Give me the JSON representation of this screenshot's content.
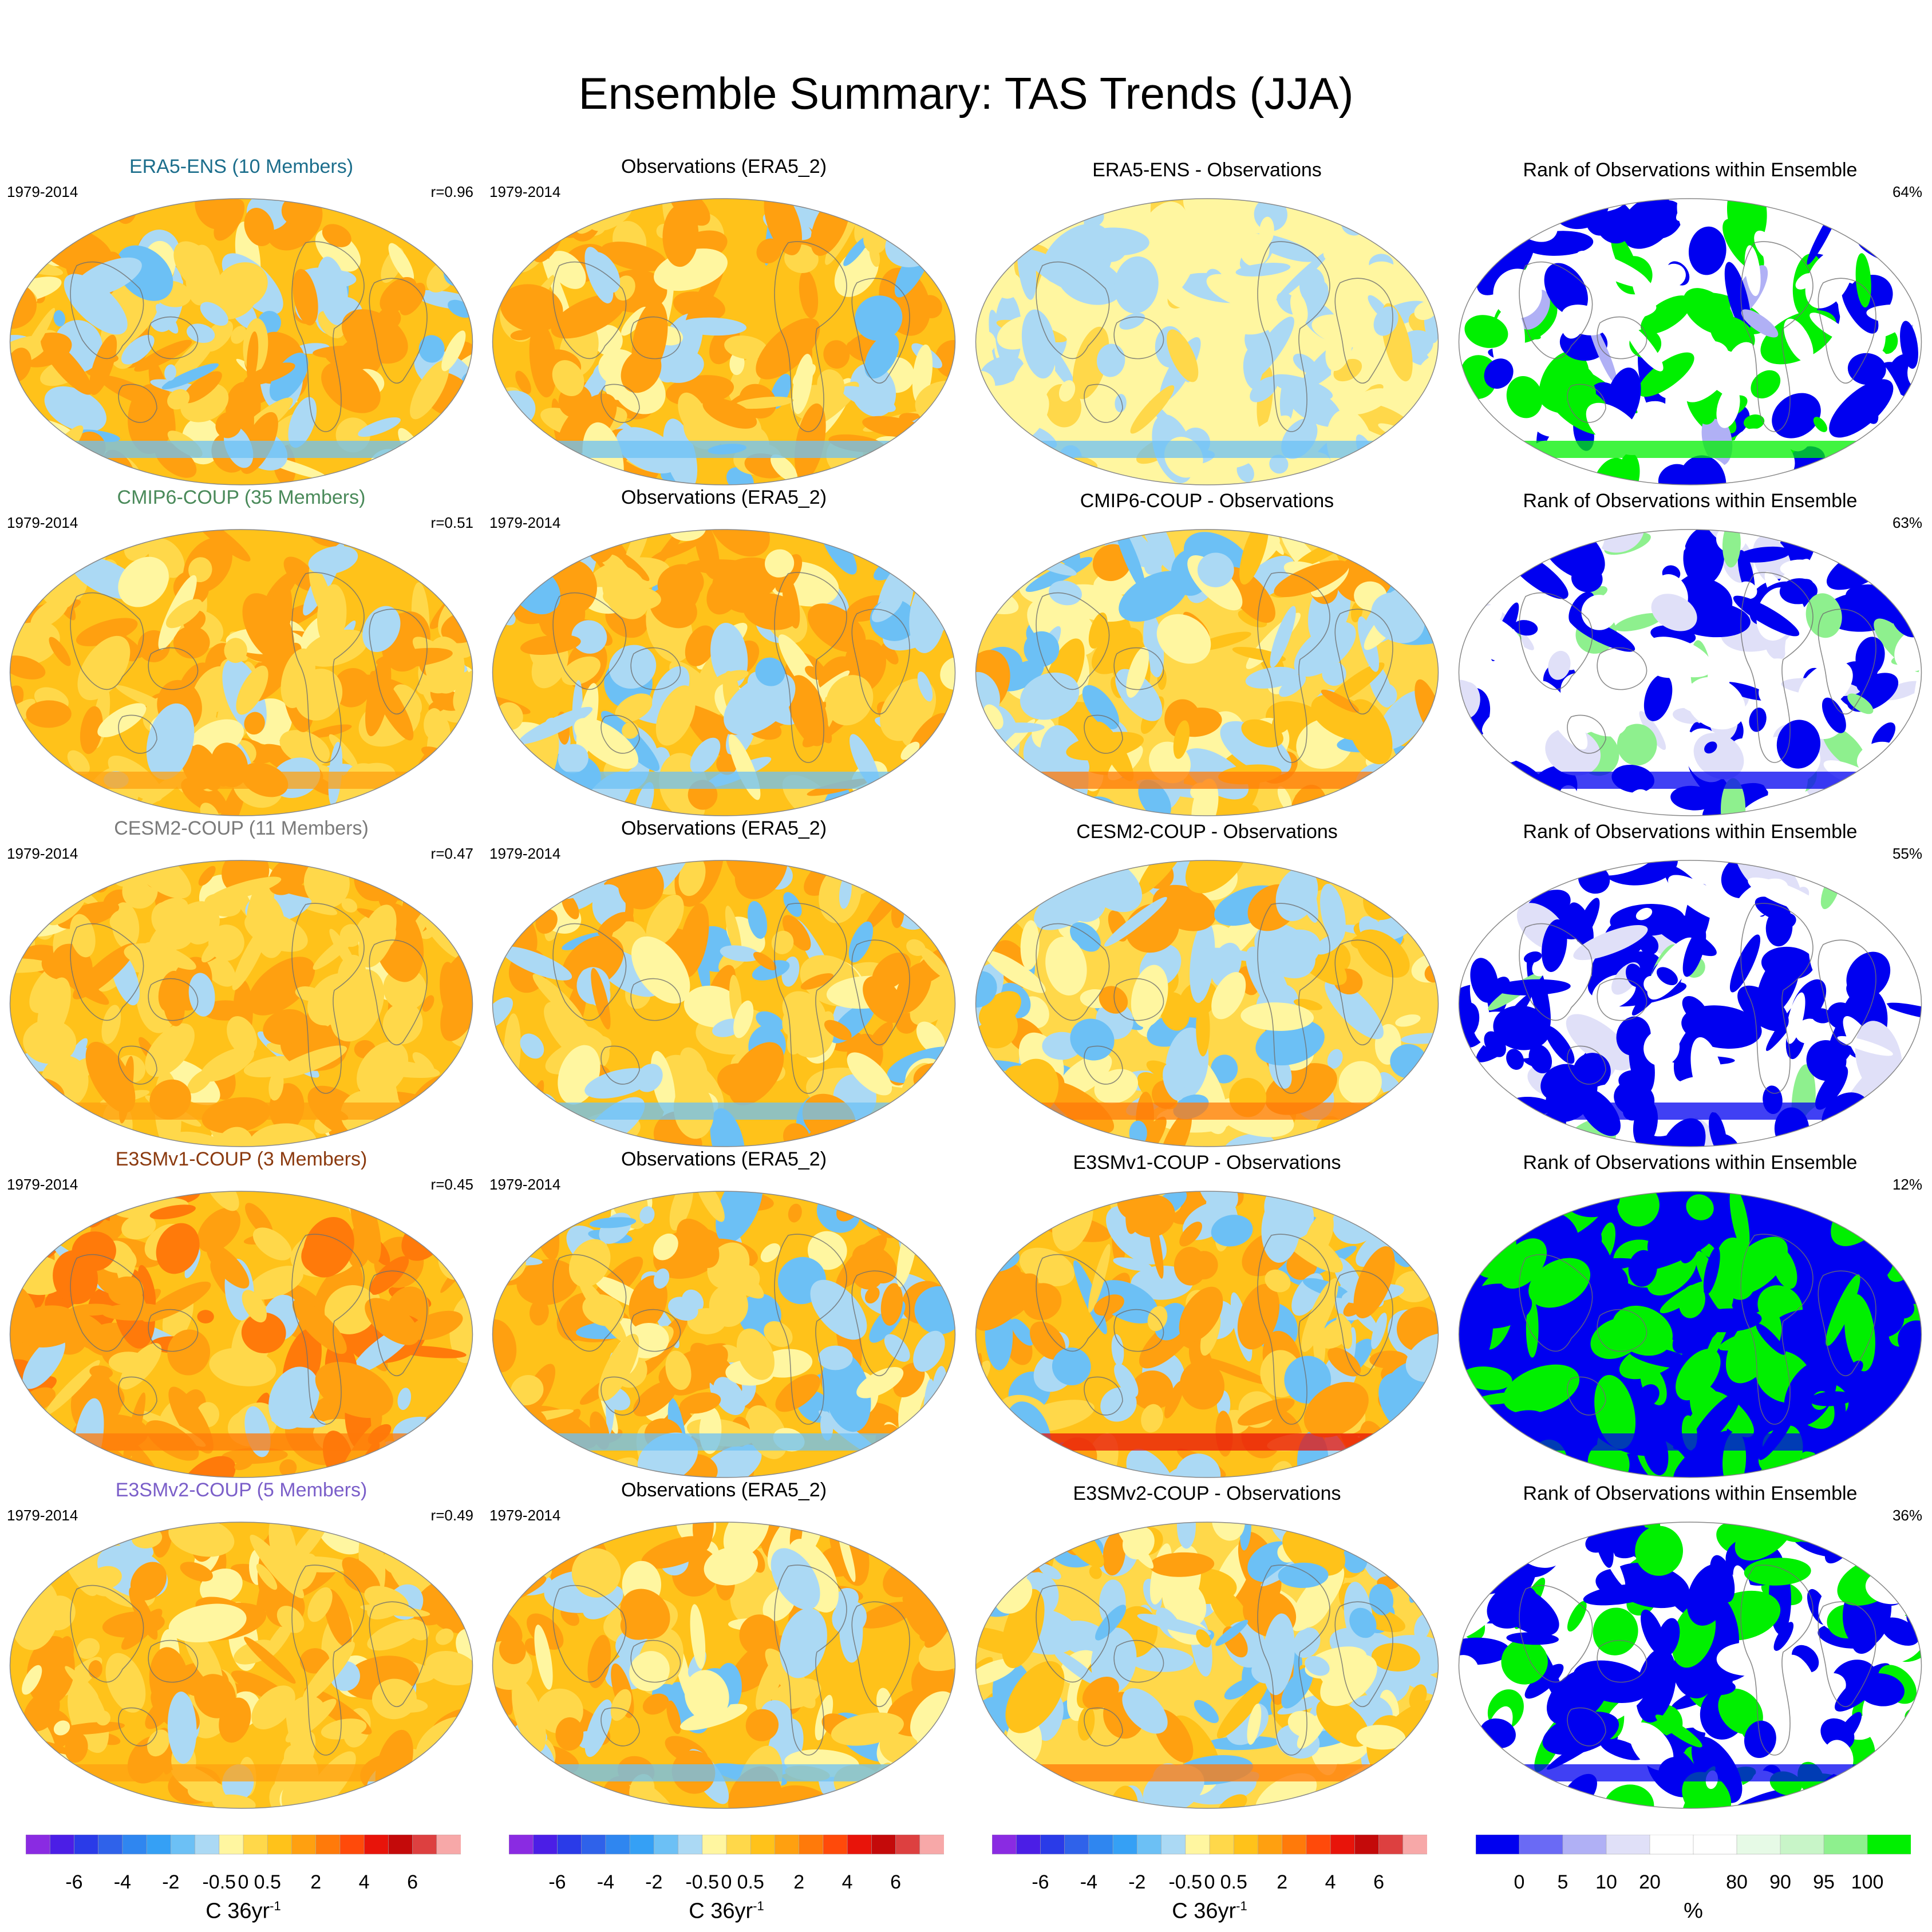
{
  "title": "Ensemble Summary: TAS Trends (JJA)",
  "period": "1979-2014",
  "rows": [
    {
      "model_title": "ERA5-ENS (10 Members)",
      "title_color": "#1c6e8c",
      "r": "r=0.96",
      "obs_title": "Observations (ERA5_2)",
      "diff_title": "ERA5-ENS - Observations",
      "rank_title": "Rank of Observations within Ensemble",
      "rank_pct": "64%",
      "model_style": "obs",
      "diff_style": "tiny",
      "rank_style": "mixed"
    },
    {
      "model_title": "CMIP6-COUP (35 Members)",
      "title_color": "#4a8a5a",
      "r": "r=0.51",
      "obs_title": "Observations (ERA5_2)",
      "diff_title": "CMIP6-COUP - Observations",
      "rank_title": "Rank of Observations within Ensemble",
      "rank_pct": "63%",
      "model_style": "smooth",
      "diff_style": "mixed",
      "rank_style": "white"
    },
    {
      "model_title": "CESM2-COUP (11 Members)",
      "title_color": "#7a7a7a",
      "r": "r=0.47",
      "obs_title": "Observations (ERA5_2)",
      "diff_title": "CESM2-COUP - Observations",
      "rank_title": "Rank of Observations within Ensemble",
      "rank_pct": "55%",
      "model_style": "smooth",
      "diff_style": "mixed",
      "rank_style": "bluewhite"
    },
    {
      "model_title": "E3SMv1-COUP (3 Members)",
      "title_color": "#8b3a0f",
      "r": "r=0.45",
      "obs_title": "Observations (ERA5_2)",
      "diff_title": "E3SMv1-COUP - Observations",
      "rank_title": "Rank of Observations within Ensemble",
      "rank_pct": "12%",
      "model_style": "warm",
      "diff_style": "warmmix",
      "rank_style": "blue"
    },
    {
      "model_title": "E3SMv2-COUP (5 Members)",
      "title_color": "#7b5fc9",
      "r": "r=0.49",
      "obs_title": "Observations (ERA5_2)",
      "diff_title": "E3SMv2-COUP - Observations",
      "rank_title": "Rank of Observations within Ensemble",
      "rank_pct": "36%",
      "model_style": "smooth",
      "diff_style": "mixed",
      "rank_style": "bluegreen"
    }
  ],
  "trend_colorbar": {
    "colors": [
      "#8a2be2",
      "#4b1ee6",
      "#2a3be8",
      "#2f62ea",
      "#2f86f0",
      "#35a0f5",
      "#6cc0f5",
      "#abd9f4",
      "#fff6a0",
      "#ffd84a",
      "#ffc21a",
      "#ffa010",
      "#ff7a0a",
      "#ff4a0a",
      "#e8140a",
      "#c40a0a",
      "#dd4040",
      "#f7a8a8"
    ],
    "tick_labels": [
      "-6",
      "-4",
      "-2",
      "-0.5",
      "0",
      "0.5",
      "2",
      "4",
      "6"
    ],
    "label": "C 36yr",
    "label_exponent": "-1"
  },
  "rank_colorbar": {
    "colors": [
      "#0000f0",
      "#6a6af5",
      "#b0b0f5",
      "#e0e0f8",
      "#ffffff",
      "#ffffff",
      "#e6fae6",
      "#c8f5c8",
      "#8ef08e",
      "#00f000"
    ],
    "tick_labels": [
      "0",
      "5",
      "10",
      "20",
      "80",
      "90",
      "95",
      "100"
    ],
    "label": "%"
  }
}
